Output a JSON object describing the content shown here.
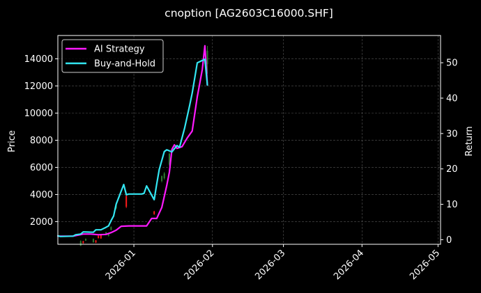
{
  "chart_data": {
    "type": "line",
    "title": "cnoption [AG2603C16000.SHF]",
    "ylabel": "Price",
    "y2label": "Return",
    "x_ticks": [
      "2026-01",
      "2026-02",
      "2026-03",
      "2026-04",
      "2026-05"
    ],
    "y_ticks": [
      2000,
      4000,
      6000,
      8000,
      10000,
      12000,
      14000
    ],
    "y2_ticks": [
      0,
      10,
      20,
      30,
      40,
      50
    ],
    "xlim": [
      "2025-12-02",
      "2026-05-02"
    ],
    "ylim": [
      330,
      15720
    ],
    "y2lim": [
      -1.3,
      57.7
    ],
    "grid": true,
    "legend_position": "top-left",
    "colors": {
      "background": "#000000",
      "ai_strategy": "#ff1aff",
      "buy_and_hold": "#33e6f2",
      "candle_up": "#2e7d32",
      "candle_down": "#ff1a1a",
      "grid": "#555555",
      "text": "#ffffff"
    },
    "series": [
      {
        "name": "AI Strategy",
        "axis": "right",
        "points": [
          [
            "2025-12-02",
            1.0
          ],
          [
            "2025-12-05",
            1.0
          ],
          [
            "2025-12-08",
            1.0
          ],
          [
            "2025-12-10",
            1.3
          ],
          [
            "2025-12-12",
            1.6
          ],
          [
            "2025-12-15",
            1.6
          ],
          [
            "2025-12-18",
            1.4
          ],
          [
            "2025-12-21",
            1.5
          ],
          [
            "2025-12-23",
            2.0
          ],
          [
            "2025-12-25",
            2.7
          ],
          [
            "2025-12-27",
            3.8
          ],
          [
            "2025-12-30",
            3.9
          ],
          [
            "2026-01-01",
            3.9
          ],
          [
            "2026-01-04",
            3.9
          ],
          [
            "2026-01-06",
            3.9
          ],
          [
            "2026-01-08",
            6.0
          ],
          [
            "2026-01-10",
            6.0
          ],
          [
            "2026-01-12",
            9.1
          ],
          [
            "2026-01-14",
            15.4
          ],
          [
            "2026-01-15",
            19.1
          ],
          [
            "2026-01-16",
            25.5
          ],
          [
            "2026-01-17",
            26.8
          ],
          [
            "2026-01-18",
            25.8
          ],
          [
            "2026-01-20",
            26.3
          ],
          [
            "2026-01-22",
            28.7
          ],
          [
            "2026-01-24",
            30.7
          ],
          [
            "2026-01-26",
            40.4
          ],
          [
            "2026-01-27",
            44.2
          ],
          [
            "2026-01-28",
            48.1
          ],
          [
            "2026-01-29",
            54.8
          ],
          [
            "2026-01-30",
            43.7
          ]
        ]
      },
      {
        "name": "Buy-and-Hold",
        "axis": "right",
        "points": [
          [
            "2025-12-02",
            1.1
          ],
          [
            "2025-12-03",
            0.9
          ],
          [
            "2025-12-08",
            1.0
          ],
          [
            "2025-12-09",
            1.4
          ],
          [
            "2025-12-11",
            1.6
          ],
          [
            "2025-12-12",
            2.2
          ],
          [
            "2025-12-16",
            2.1
          ],
          [
            "2025-12-17",
            2.8
          ],
          [
            "2025-12-19",
            2.8
          ],
          [
            "2025-12-21",
            3.5
          ],
          [
            "2025-12-22",
            3.9
          ],
          [
            "2025-12-23",
            5.4
          ],
          [
            "2025-12-24",
            6.7
          ],
          [
            "2025-12-25",
            10.0
          ],
          [
            "2025-12-28",
            15.6
          ],
          [
            "2025-12-29",
            12.7
          ],
          [
            "2025-12-30",
            12.9
          ],
          [
            "2026-01-04",
            12.9
          ],
          [
            "2026-01-05",
            13.1
          ],
          [
            "2026-01-06",
            15.2
          ],
          [
            "2026-01-08",
            12.6
          ],
          [
            "2026-01-09",
            11.3
          ],
          [
            "2026-01-10",
            15.7
          ],
          [
            "2026-01-11",
            19.8
          ],
          [
            "2026-01-13",
            24.9
          ],
          [
            "2026-01-14",
            25.4
          ],
          [
            "2026-01-16",
            24.8
          ],
          [
            "2026-01-18",
            26.6
          ],
          [
            "2026-01-19",
            26.1
          ],
          [
            "2026-01-21",
            31.5
          ],
          [
            "2026-01-23",
            38.0
          ],
          [
            "2026-01-24",
            41.4
          ],
          [
            "2026-01-26",
            50.0
          ],
          [
            "2026-01-29",
            51.0
          ],
          [
            "2026-01-30",
            43.7
          ]
        ]
      }
    ],
    "candles": [
      {
        "date": "2025-12-11",
        "open": 230,
        "close": 560,
        "high": 620,
        "low": 200
      },
      {
        "date": "2025-12-12",
        "open": 560,
        "close": 420,
        "high": 580,
        "low": 380
      },
      {
        "date": "2025-12-13",
        "open": 600,
        "close": 720,
        "high": 760,
        "low": 580
      },
      {
        "date": "2025-12-16",
        "open": 480,
        "close": 720,
        "high": 760,
        "low": 440
      },
      {
        "date": "2025-12-17",
        "open": 620,
        "close": 460,
        "high": 640,
        "low": 420
      },
      {
        "date": "2025-12-18",
        "open": 950,
        "close": 780,
        "high": 1000,
        "low": 760
      },
      {
        "date": "2025-12-19",
        "open": 1000,
        "close": 760,
        "high": 1020,
        "low": 740
      },
      {
        "date": "2025-12-21",
        "open": 1050,
        "close": 1200,
        "high": 1250,
        "low": 1000
      },
      {
        "date": "2025-12-22",
        "open": 950,
        "close": 1080,
        "high": 1150,
        "low": 900
      },
      {
        "date": "2025-12-23",
        "open": 1400,
        "close": 1600,
        "high": 1650,
        "low": 1350
      },
      {
        "date": "2025-12-25",
        "open": 3000,
        "close": 3300,
        "high": 3400,
        "low": 2900
      },
      {
        "date": "2025-12-29",
        "open": 3900,
        "close": 3100,
        "high": 4200,
        "low": 3000
      },
      {
        "date": "2026-01-09",
        "open": 2750,
        "close": 2550,
        "high": 2800,
        "low": 2500
      },
      {
        "date": "2026-01-12",
        "open": 5000,
        "close": 5350,
        "high": 5400,
        "low": 4900
      },
      {
        "date": "2026-01-13",
        "open": 5200,
        "close": 5550,
        "high": 5650,
        "low": 5100
      },
      {
        "date": "2026-01-15",
        "open": 6200,
        "close": 7000,
        "high": 7100,
        "low": 6100
      },
      {
        "date": "2026-01-30",
        "open": 13600,
        "close": 14600,
        "high": 14950,
        "low": 12900
      }
    ]
  }
}
